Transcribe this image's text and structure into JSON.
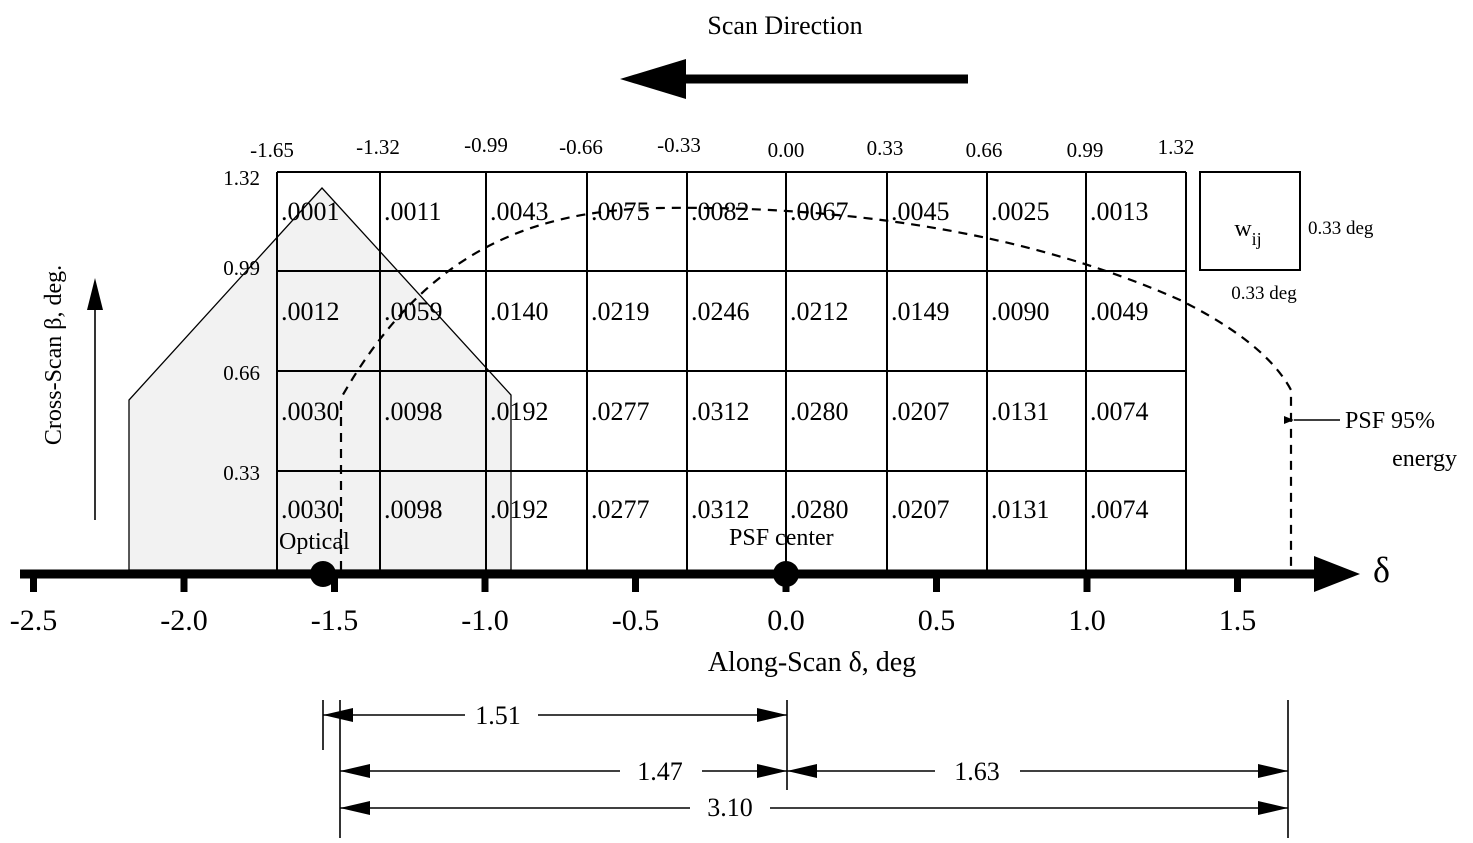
{
  "title": "Scan Direction",
  "top_ticks": [
    "-1.65",
    "-1.32",
    "-0.99",
    "-0.66",
    "-0.33",
    "0.00",
    "0.33",
    "0.66",
    "0.99",
    "1.32"
  ],
  "left_ticks": [
    "1.32",
    "0.99",
    "0.66",
    "0.33"
  ],
  "y_axis_label": "Cross-Scan  β, deg.",
  "x_axis_label": "Along-Scan  δ, deg",
  "x_axis_symbol": "δ",
  "x_ticks": [
    "-2.5",
    "-2.0",
    "-1.5",
    "-1.0",
    "-0.5",
    "0.0",
    "0.5",
    "1.0",
    "1.5"
  ],
  "grid_rows": [
    [
      ".0001",
      ".0011",
      ".0043",
      ".0075",
      ".0082",
      ".0067",
      ".0045",
      ".0025",
      ".0013"
    ],
    [
      ".0012",
      ".0059",
      ".0140",
      ".0219",
      ".0246",
      ".0212",
      ".0149",
      ".0090",
      ".0049"
    ],
    [
      ".0030",
      ".0098",
      ".0192",
      ".0277",
      ".0312",
      ".0280",
      ".0207",
      ".0131",
      ".0074"
    ],
    [
      ".0030",
      ".0098",
      ".0192",
      ".0277",
      ".0312",
      ".0280",
      ".0207",
      ".0131",
      ".0074"
    ]
  ],
  "cell_legend": {
    "symbol": "w",
    "subscript": "ij",
    "height_label": "0.33 deg",
    "width_label": "0.33 deg"
  },
  "psf_label_line1": "PSF 95%",
  "psf_label_line2": "energy",
  "optical_label": "Optical",
  "psf_center_label": "PSF center",
  "dimensions": {
    "d1": "1.51",
    "d2": "1.47",
    "d3": "1.63",
    "d4": "3.10"
  }
}
